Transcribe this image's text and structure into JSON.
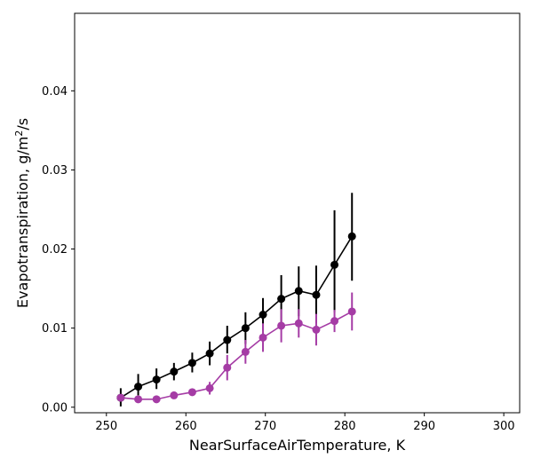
{
  "chart_data": {
    "type": "line",
    "xlabel": "NearSurfaceAirTemperature,  K",
    "ylabel_main": "Evapotranspiration,  g/m",
    "ylabel_sup": "2",
    "ylabel_tail": "/s",
    "xlim": [
      246,
      302
    ],
    "ylim": [
      -0.0007,
      0.0498
    ],
    "xticks": [
      250,
      260,
      270,
      280,
      290,
      300
    ],
    "xtick_labels": [
      "250",
      "260",
      "270",
      "280",
      "290",
      "300"
    ],
    "yticks": [
      0.0,
      0.01,
      0.02,
      0.03,
      0.04
    ],
    "ytick_labels": [
      "0.00",
      "0.01",
      "0.02",
      "0.03",
      "0.04"
    ],
    "grid": false,
    "series": [
      {
        "color": "#000000",
        "x": [
          251.8,
          254.0,
          256.3,
          258.5,
          260.8,
          263.0,
          265.2,
          267.5,
          269.7,
          272.0,
          274.2,
          276.4,
          278.7,
          280.9
        ],
        "y": [
          0.0012,
          0.0026,
          0.0035,
          0.0045,
          0.0056,
          0.0068,
          0.0085,
          0.01,
          0.0117,
          0.0137,
          0.0147,
          0.0142,
          0.018,
          0.0216
        ],
        "yerr_low": [
          0.0011,
          0.0011,
          0.0012,
          0.0011,
          0.0012,
          0.0015,
          0.0017,
          0.002,
          0.002,
          0.003,
          0.0032,
          0.0036,
          0.006,
          0.0056
        ],
        "yerr_high": [
          0.0012,
          0.0016,
          0.0014,
          0.0011,
          0.0013,
          0.0015,
          0.0018,
          0.002,
          0.0021,
          0.003,
          0.0031,
          0.0037,
          0.0069,
          0.0055
        ]
      },
      {
        "color": "#a53ca5",
        "x": [
          251.8,
          254.0,
          256.3,
          258.5,
          260.8,
          263.0,
          265.2,
          267.5,
          269.7,
          272.0,
          274.2,
          276.4,
          278.7,
          280.9
        ],
        "y": [
          0.0012,
          0.001,
          0.001,
          0.0015,
          0.0019,
          0.0024,
          0.005,
          0.007,
          0.0088,
          0.0103,
          0.0106,
          0.0098,
          0.0109,
          0.0121
        ],
        "yerr_low": [
          0.0004,
          0.0003,
          0.0003,
          0.0003,
          0.0004,
          0.0008,
          0.0016,
          0.0015,
          0.0018,
          0.0021,
          0.0018,
          0.002,
          0.0014,
          0.0024
        ],
        "yerr_high": [
          0.0004,
          0.0003,
          0.0003,
          0.0003,
          0.0004,
          0.0008,
          0.0016,
          0.0015,
          0.0018,
          0.0021,
          0.0018,
          0.002,
          0.0014,
          0.0024
        ]
      }
    ]
  }
}
